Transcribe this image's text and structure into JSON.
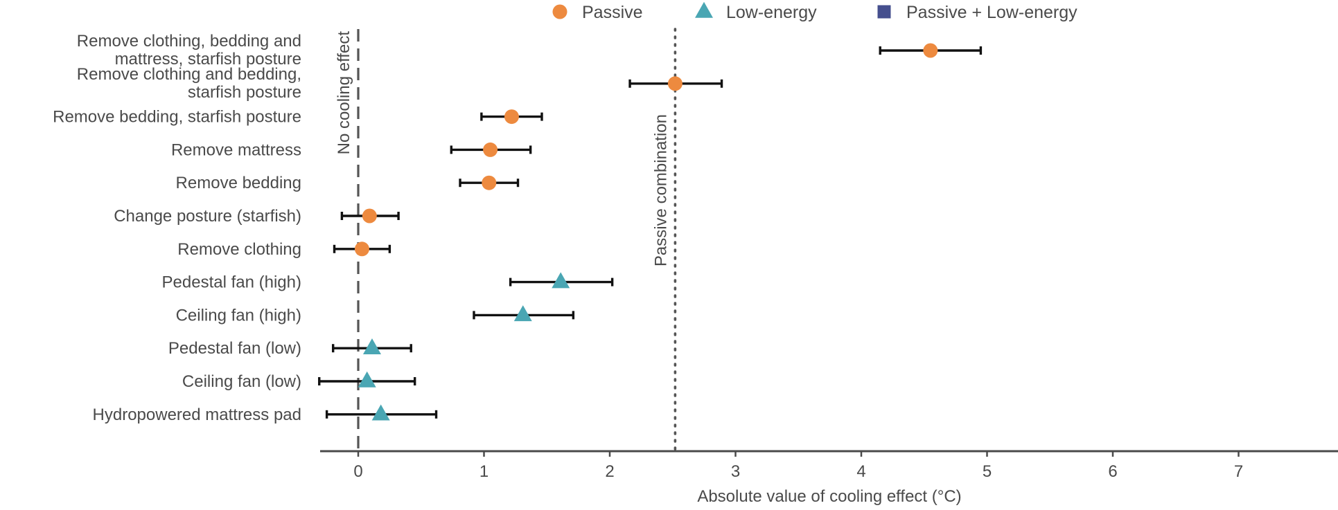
{
  "chart_data": {
    "type": "scatter",
    "title": "",
    "xlabel": "Absolute value of cooling effect (°C)",
    "ylabel": "",
    "xlim": [
      -0.3,
      7.8
    ],
    "xticks": [
      "0",
      "1",
      "2",
      "3",
      "4",
      "5",
      "6",
      "7"
    ],
    "grid": false,
    "legend_position": "top",
    "legend": [
      {
        "name": "Passive",
        "marker": "circle",
        "color": "#ed8a3f"
      },
      {
        "name": "Low-energy",
        "marker": "triangle",
        "color": "#4aa6b3"
      },
      {
        "name": "Passive + Low-energy",
        "marker": "square",
        "color": "#454f8e"
      }
    ],
    "reference_lines": [
      {
        "label": "No cooling effect",
        "x": 0,
        "style": "dashed"
      },
      {
        "label": "Passive combination",
        "x": 2.52,
        "style": "dotted"
      }
    ],
    "points": [
      {
        "label": [
          "Remove clothing, bedding and",
          "mattress, starfish posture"
        ],
        "group": "Passive",
        "value": 4.55,
        "lo": 4.15,
        "hi": 4.95
      },
      {
        "label": [
          "Remove clothing and bedding,",
          "starfish posture"
        ],
        "group": "Passive",
        "value": 2.52,
        "lo": 2.16,
        "hi": 2.89
      },
      {
        "label": [
          "Remove bedding, starfish posture"
        ],
        "group": "Passive",
        "value": 1.22,
        "lo": 0.98,
        "hi": 1.46
      },
      {
        "label": [
          "Remove mattress"
        ],
        "group": "Passive",
        "value": 1.05,
        "lo": 0.74,
        "hi": 1.37
      },
      {
        "label": [
          "Remove bedding"
        ],
        "group": "Passive",
        "value": 1.04,
        "lo": 0.81,
        "hi": 1.27
      },
      {
        "label": [
          "Change posture (starfish)"
        ],
        "group": "Passive",
        "value": 0.09,
        "lo": -0.13,
        "hi": 0.32
      },
      {
        "label": [
          "Remove clothing"
        ],
        "group": "Passive",
        "value": 0.03,
        "lo": -0.19,
        "hi": 0.25
      },
      {
        "label": [
          "Pedestal fan (high)"
        ],
        "group": "Low-energy",
        "value": 1.61,
        "lo": 1.21,
        "hi": 2.02
      },
      {
        "label": [
          "Ceiling fan (high)"
        ],
        "group": "Low-energy",
        "value": 1.31,
        "lo": 0.92,
        "hi": 1.71
      },
      {
        "label": [
          "Pedestal fan (low)"
        ],
        "group": "Low-energy",
        "value": 0.11,
        "lo": -0.2,
        "hi": 0.42
      },
      {
        "label": [
          "Ceiling fan (low)"
        ],
        "group": "Low-energy",
        "value": 0.07,
        "lo": -0.31,
        "hi": 0.45
      },
      {
        "label": [
          "Hydropowered mattress pad"
        ],
        "group": "Low-energy",
        "value": 0.18,
        "lo": -0.25,
        "hi": 0.62
      }
    ]
  }
}
